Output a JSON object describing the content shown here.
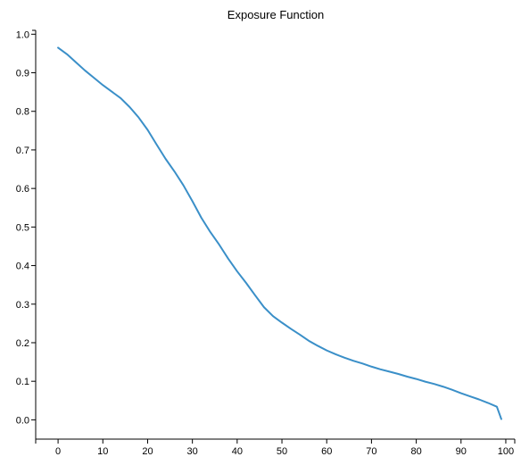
{
  "chart_data": {
    "type": "line",
    "title": "Exposure Function",
    "xlabel": "",
    "ylabel": "",
    "xlim": [
      -5,
      102
    ],
    "ylim": [
      -0.05,
      1.01
    ],
    "x_ticks": [
      0,
      10,
      20,
      30,
      40,
      50,
      60,
      70,
      80,
      90,
      100
    ],
    "x_tick_labels": [
      "0",
      "10",
      "20",
      "30",
      "40",
      "50",
      "60",
      "70",
      "80",
      "90",
      "100"
    ],
    "y_ticks": [
      0.0,
      0.1,
      0.2,
      0.3,
      0.4,
      0.5,
      0.6,
      0.7,
      0.8,
      0.9,
      1.0
    ],
    "y_tick_labels": [
      "0.0",
      "0.1",
      "0.2",
      "0.3",
      "0.4",
      "0.5",
      "0.6",
      "0.7",
      "0.8",
      "0.9",
      "1.0"
    ],
    "grid": false,
    "series": [
      {
        "color": "#3a8fc8",
        "x": [
          0,
          2,
          4,
          6,
          8,
          10,
          12,
          14,
          16,
          18,
          20,
          22,
          24,
          26,
          28,
          30,
          32,
          34,
          36,
          38,
          40,
          42,
          44,
          46,
          48,
          50,
          52,
          54,
          56,
          58,
          60,
          62,
          64,
          66,
          68,
          70,
          72,
          74,
          76,
          78,
          80,
          82,
          84,
          86,
          88,
          90,
          92,
          94,
          96,
          98,
          99
        ],
        "y": [
          0.965,
          0.948,
          0.927,
          0.906,
          0.887,
          0.868,
          0.851,
          0.834,
          0.811,
          0.784,
          0.752,
          0.714,
          0.677,
          0.644,
          0.608,
          0.567,
          0.524,
          0.487,
          0.454,
          0.418,
          0.385,
          0.355,
          0.323,
          0.292,
          0.269,
          0.252,
          0.236,
          0.221,
          0.205,
          0.192,
          0.18,
          0.17,
          0.161,
          0.153,
          0.146,
          0.138,
          0.131,
          0.125,
          0.119,
          0.112,
          0.106,
          0.099,
          0.093,
          0.086,
          0.078,
          0.069,
          0.061,
          0.053,
          0.044,
          0.034,
          0.002
        ]
      }
    ]
  }
}
